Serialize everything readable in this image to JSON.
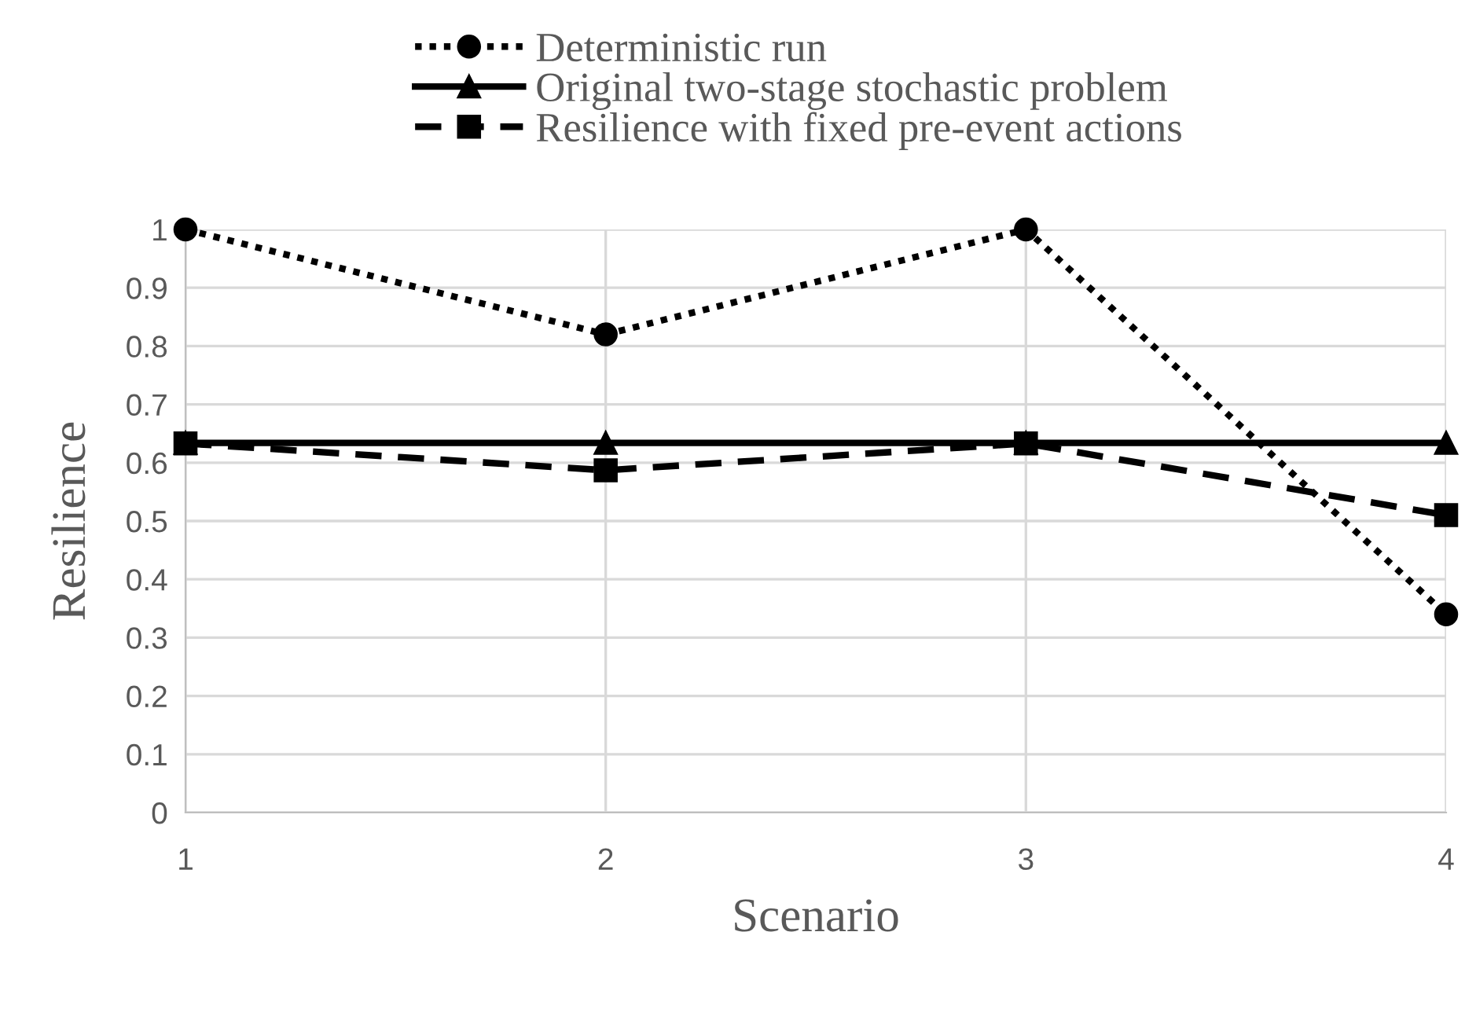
{
  "chart_data": {
    "type": "line",
    "xlabel": "Scenario",
    "ylabel": "Resilience",
    "x": [
      1,
      2,
      3,
      4
    ],
    "xlim": [
      1,
      4
    ],
    "xticks": [
      1,
      2,
      3,
      4
    ],
    "ylim": [
      0,
      1
    ],
    "yticks": [
      0,
      0.1,
      0.2,
      0.3,
      0.4,
      0.5,
      0.6,
      0.7,
      0.8,
      0.9,
      1
    ],
    "grid": true,
    "legend": "top",
    "series": [
      {
        "name": "Deterministic run",
        "color": "#000000",
        "values": [
          1,
          0.82,
          1,
          0.34
        ],
        "marker": "circle",
        "line_style": "dotted"
      },
      {
        "name": "Original two-stage stochastic problem",
        "color": "#000000",
        "values": [
          0.634,
          0.634,
          0.634,
          0.634
        ],
        "marker": "triangle",
        "line_style": "solid"
      },
      {
        "name": "Resilience with fixed pre-event actions",
        "color": "#000000",
        "values": [
          0.633,
          0.587,
          0.633,
          0.51
        ],
        "marker": "square",
        "line_style": "dashed"
      }
    ]
  }
}
